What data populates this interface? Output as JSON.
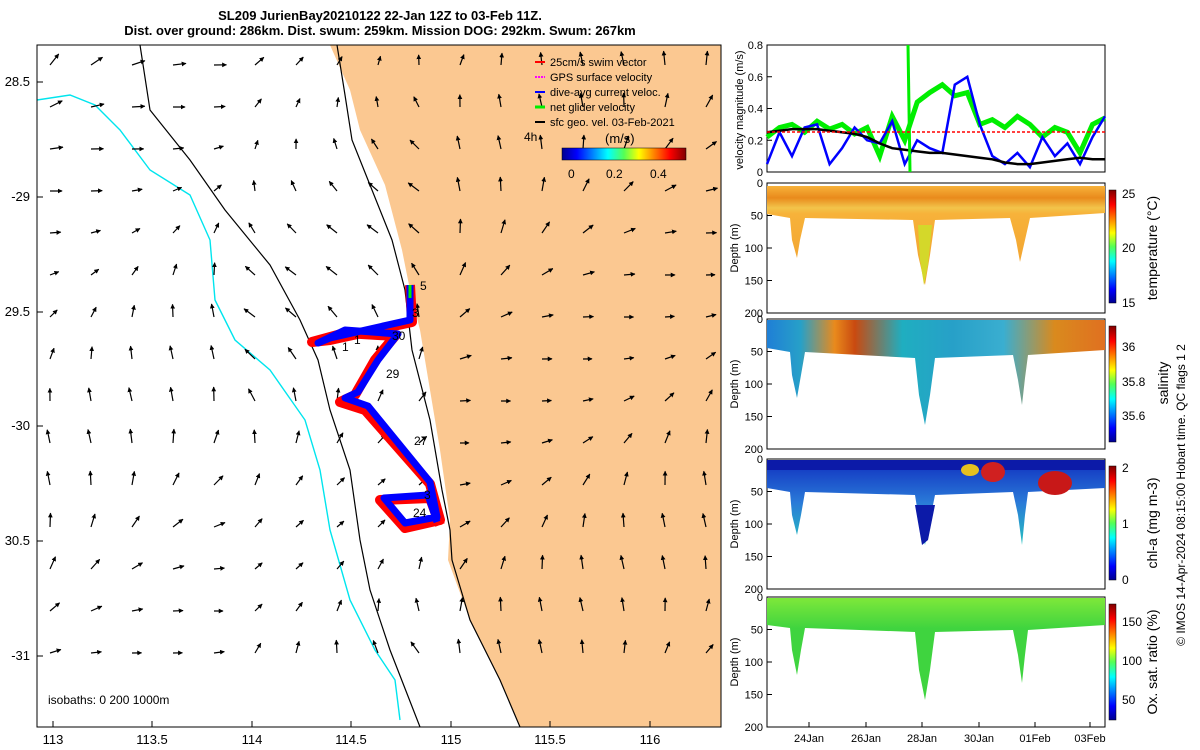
{
  "title": {
    "line1": "SL209 JurienBay20210122 22-Jan 12Z to 03-Feb 11Z.",
    "line2": "Dist. over ground: 286km. Dist. swum: 259km. Mission DOG: 292km. Swum: 267km"
  },
  "colors": {
    "land": "#fbc891",
    "coast": "#00e5ee",
    "swim_vector": "#ff0000",
    "gps_velocity": "#ff00ff",
    "dive_avg": "#0000ff",
    "net_glider": "#00ee00",
    "sfc_geo": "#000000"
  },
  "map": {
    "lon_ticks": [
      "113",
      "113.5",
      "114",
      "114.5",
      "115",
      "115.5",
      "116"
    ],
    "lat_ticks": [
      "28.5",
      "-29",
      "29.5",
      "-30",
      "30.5",
      "-31"
    ],
    "legend": [
      {
        "label": "25cm/s swim vector",
        "color": "#ff0000"
      },
      {
        "label": "GPS surface velocity",
        "color": "#ff00ff"
      },
      {
        "label": "dive-avg current veloc.",
        "color": "#0000ff"
      },
      {
        "label": "net glider velocity",
        "color": "#00ee00"
      },
      {
        "label": "sfc geo. vel. 03-Feb-2021",
        "color": "#000000"
      }
    ],
    "interval_label": "4h",
    "colorbar_units": "(m/s)",
    "colorbar_ticks": [
      "0",
      "0.2",
      "0.4"
    ],
    "isobaths_label": "isobaths: 0   200  1000m",
    "day_labels": [
      "1",
      "1",
      "30",
      "29",
      "27",
      "3",
      "24",
      "5",
      "3"
    ]
  },
  "chart_data": [
    {
      "type": "line",
      "ylabel": "velocity magnitude (m/s)",
      "ylim": [
        0,
        0.8
      ],
      "yticks": [
        "0",
        "0.2",
        "0.4",
        "0.6",
        "0.8"
      ],
      "series": [
        {
          "name": "net glider velocity",
          "values": [
            0.22,
            0.28,
            0.3,
            0.25,
            0.32,
            0.27,
            0.3,
            0.24,
            0.28,
            0.1,
            0.35,
            0.2,
            0.44,
            0.5,
            0.55,
            0.48,
            0.5,
            0.3,
            0.33,
            0.28,
            0.35,
            0.3,
            0.22,
            0.28,
            0.25,
            0.12,
            0.3,
            0.34
          ]
        },
        {
          "name": "dive-avg current veloc.",
          "values": [
            0.05,
            0.25,
            0.1,
            0.28,
            0.3,
            0.05,
            0.15,
            0.28,
            0.2,
            0.18,
            0.32,
            0.05,
            0.2,
            0.15,
            0.12,
            0.55,
            0.6,
            0.3,
            0.1,
            0.05,
            0.12,
            0.03,
            0.22,
            0.1,
            0.18,
            0.05,
            0.22,
            0.35
          ]
        },
        {
          "name": "sfc geo. vel.",
          "values": [
            0.25,
            0.26,
            0.27,
            0.27,
            0.27,
            0.26,
            0.25,
            0.24,
            0.22,
            0.18,
            0.15,
            0.14,
            0.13,
            0.12,
            0.12,
            0.11,
            0.1,
            0.09,
            0.08,
            0.06,
            0.05,
            0.05,
            0.06,
            0.07,
            0.08,
            0.09,
            0.08,
            0.08
          ]
        }
      ]
    },
    {
      "type": "heatmap",
      "ylabel": "Depth (m)",
      "clabel": "temperature (°C)",
      "cticks": [
        "25",
        "20",
        "15"
      ]
    },
    {
      "type": "heatmap",
      "ylabel": "Depth (m)",
      "clabel": "salinity",
      "cticks": [
        "36",
        "35.8",
        "35.6"
      ]
    },
    {
      "type": "heatmap",
      "ylabel": "Depth (m)",
      "clabel": "chl-a (mg m-3)",
      "cticks": [
        "2",
        "1",
        "0"
      ]
    },
    {
      "type": "heatmap",
      "ylabel": "Depth (m)",
      "clabel": "Ox. sat. ratio (%)",
      "cticks": [
        "150",
        "100",
        "50"
      ]
    }
  ],
  "depth_ticks": [
    "0",
    "50",
    "100",
    "150",
    "200"
  ],
  "date_ticks": [
    "24Jan",
    "26Jan",
    "28Jan",
    "30Jan",
    "01Feb",
    "03Feb"
  ],
  "footer": "© IMOS 14-Apr-2024 08:15:00 Hobart time. QC flags 1  2"
}
